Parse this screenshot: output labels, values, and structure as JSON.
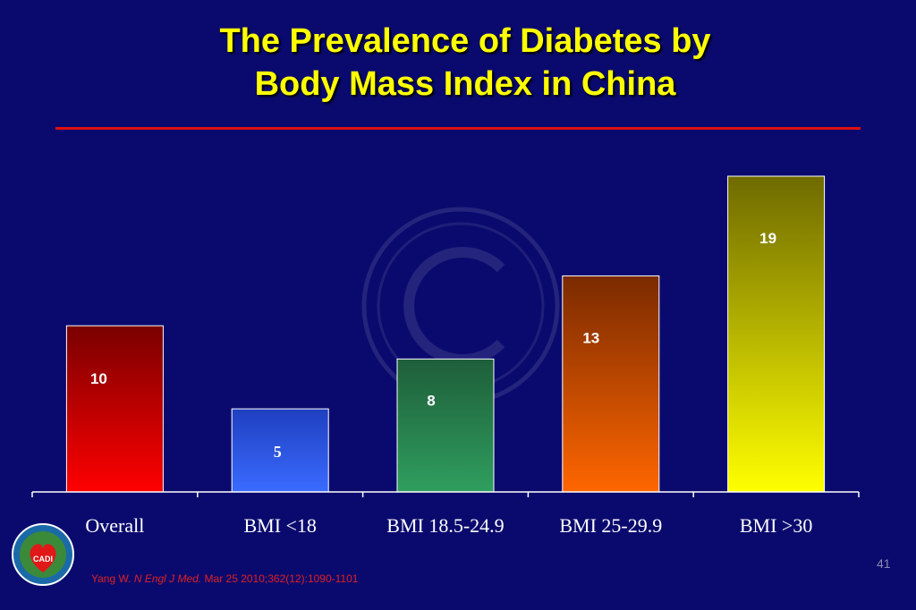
{
  "slide": {
    "title_line1": "The Prevalence of Diabetes by",
    "title_line2": "Body Mass Index in China",
    "citation_author": "Yang W.",
    "citation_journal": "N Engl J Med.",
    "citation_rest": "Mar 25 2010;362(12):1090-1101",
    "page_number": "41",
    "logo_text": "CADI"
  },
  "colors": {
    "background": "#0a0a6e",
    "title": "#ffff00",
    "rule": "#e01010"
  },
  "chart_data": {
    "type": "bar",
    "title": "The Prevalence of Diabetes by Body Mass Index in China",
    "categories": [
      "Overall",
      "BMI <18",
      "BMI 18.5-24.9",
      "BMI 25-29.9",
      "BMI >30"
    ],
    "values": [
      10,
      5,
      8,
      13,
      19
    ],
    "value_labels": [
      "10",
      "5",
      "8",
      "13",
      "19"
    ],
    "bar_colors": [
      [
        "#7a0000",
        "#ff0000"
      ],
      [
        "#1f3fbf",
        "#3a6bff"
      ],
      [
        "#1e5e3a",
        "#2f9e5e"
      ],
      [
        "#7a2a00",
        "#ff6600"
      ],
      [
        "#6e6a00",
        "#ffff00"
      ]
    ],
    "ylim": [
      0,
      19
    ],
    "xlabel": "",
    "ylabel": "",
    "grid": false,
    "legend": "none"
  }
}
